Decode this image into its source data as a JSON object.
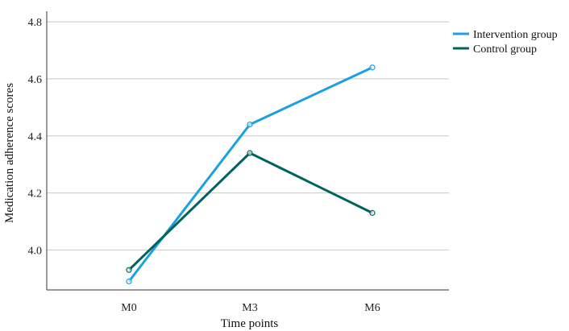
{
  "chart_data": {
    "type": "line",
    "title": "",
    "xlabel": "Time points",
    "ylabel": "Medication adherence scores",
    "categories": [
      "M0",
      "M3",
      "M6"
    ],
    "ylim": [
      3.86,
      4.82
    ],
    "yticks": [
      4.0,
      4.2,
      4.4,
      4.6,
      4.8
    ],
    "ytick_labels": [
      "4.0",
      "4.2",
      "4.4",
      "4.6",
      "4.8"
    ],
    "grid": "horizontal",
    "legend_position": "top-right",
    "series": [
      {
        "name": "Intervention group",
        "values": [
          3.89,
          4.44,
          4.64
        ],
        "color": "#1ba1e2"
      },
      {
        "name": "Control group",
        "values": [
          3.93,
          4.34,
          4.13
        ],
        "color": "#00635d"
      }
    ]
  }
}
